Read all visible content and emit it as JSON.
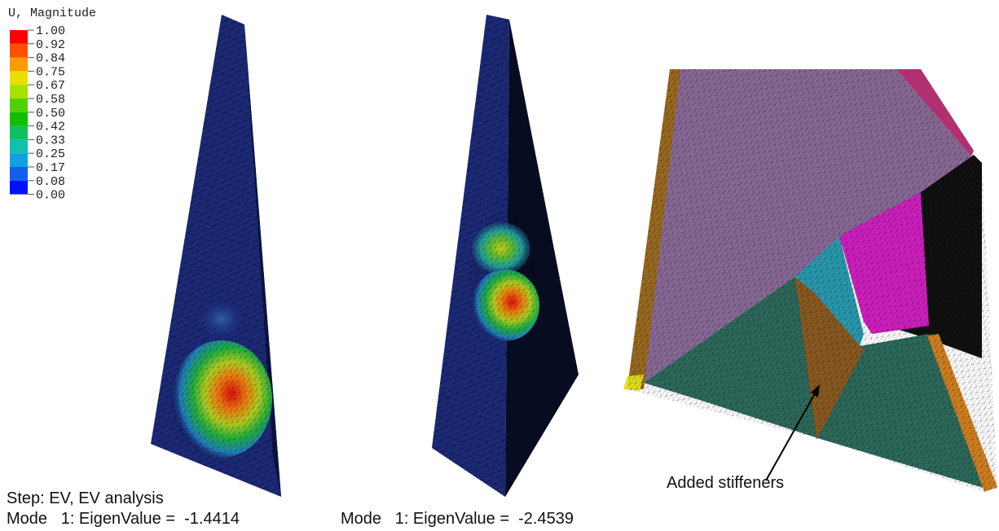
{
  "legend": {
    "title": "U, Magnitude",
    "labels": [
      "1.00",
      "0.92",
      "0.84",
      "0.75",
      "0.67",
      "0.58",
      "0.50",
      "0.42",
      "0.33",
      "0.25",
      "0.17",
      "0.08",
      "0.00"
    ]
  },
  "captions": {
    "step": "Step: EV, EV analysis",
    "mode_left": "Mode   1: EigenValue =  -1.4414",
    "mode_right": "Mode   1: EigenValue =  -2.4539"
  },
  "annotation": "Added stiffeners"
}
